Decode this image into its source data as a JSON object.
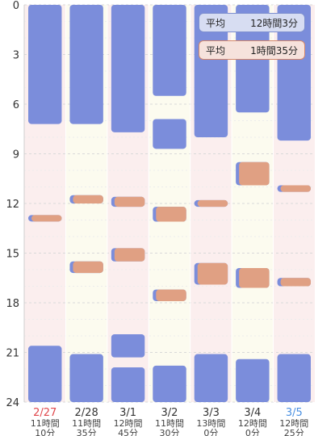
{
  "chart_data": {
    "type": "bar",
    "orientation": "vertical-timeline",
    "y_ticks": [
      "0",
      "3",
      "6",
      "9",
      "12",
      "15",
      "18",
      "21",
      "24"
    ],
    "ylim": [
      0,
      24
    ],
    "grid": true,
    "days": [
      {
        "date": "2/27",
        "total": "11時間\n10分",
        "date_color": "#e0474c",
        "sleep": [
          [
            0,
            7.2
          ],
          [
            20.6,
            24
          ]
        ],
        "naps": [
          [
            12.7,
            13.0
          ]
        ]
      },
      {
        "date": "2/28",
        "total": "11時間\n35分",
        "date_color": "#333333",
        "sleep": [
          [
            0,
            7.2
          ],
          [
            21.1,
            24
          ]
        ],
        "naps": [
          [
            11.5,
            12.0
          ],
          [
            15.5,
            16.2
          ]
        ]
      },
      {
        "date": "3/1",
        "total": "12時間\n45分",
        "date_color": "#333333",
        "sleep": [
          [
            0,
            7.7
          ],
          [
            19.9,
            21.3
          ],
          [
            21.9,
            24
          ]
        ],
        "naps": [
          [
            11.6,
            12.2
          ],
          [
            14.7,
            15.5
          ]
        ]
      },
      {
        "date": "3/2",
        "total": "11時間\n30分",
        "date_color": "#333333",
        "sleep": [
          [
            0,
            5.5
          ],
          [
            6.9,
            8.7
          ],
          [
            21.8,
            24
          ]
        ],
        "naps": [
          [
            12.2,
            13.1
          ],
          [
            17.2,
            17.9
          ]
        ]
      },
      {
        "date": "3/3",
        "total": "13時間\n0分",
        "date_color": "#333333",
        "sleep": [
          [
            0,
            8.0
          ],
          [
            21.1,
            24
          ]
        ],
        "naps": [
          [
            11.8,
            12.2
          ],
          [
            15.6,
            16.9
          ]
        ]
      },
      {
        "date": "3/4",
        "total": "12時間\n0分",
        "date_color": "#333333",
        "sleep": [
          [
            0,
            6.5
          ],
          [
            21.4,
            24
          ]
        ],
        "naps": [
          [
            9.5,
            10.9
          ],
          [
            15.9,
            17.1
          ]
        ]
      },
      {
        "date": "3/5",
        "total": "12時間\n25分",
        "date_color": "#4a90e2",
        "sleep": [
          [
            0,
            8.2
          ],
          [
            21.1,
            24
          ]
        ],
        "naps": [
          [
            10.9,
            11.3
          ],
          [
            16.5,
            17.0
          ]
        ]
      }
    ],
    "colors": {
      "sleep": "#7b8ddb",
      "nap": "#e0a083",
      "nap_edge": "#7b8ddb",
      "col_bg_a": "#fbeeee",
      "col_bg_b": "#fcfbef"
    }
  },
  "averages": {
    "sleep_label": "平均",
    "sleep_value": "12時間3分",
    "nap_label": "平均",
    "nap_value": "1時間35分"
  }
}
